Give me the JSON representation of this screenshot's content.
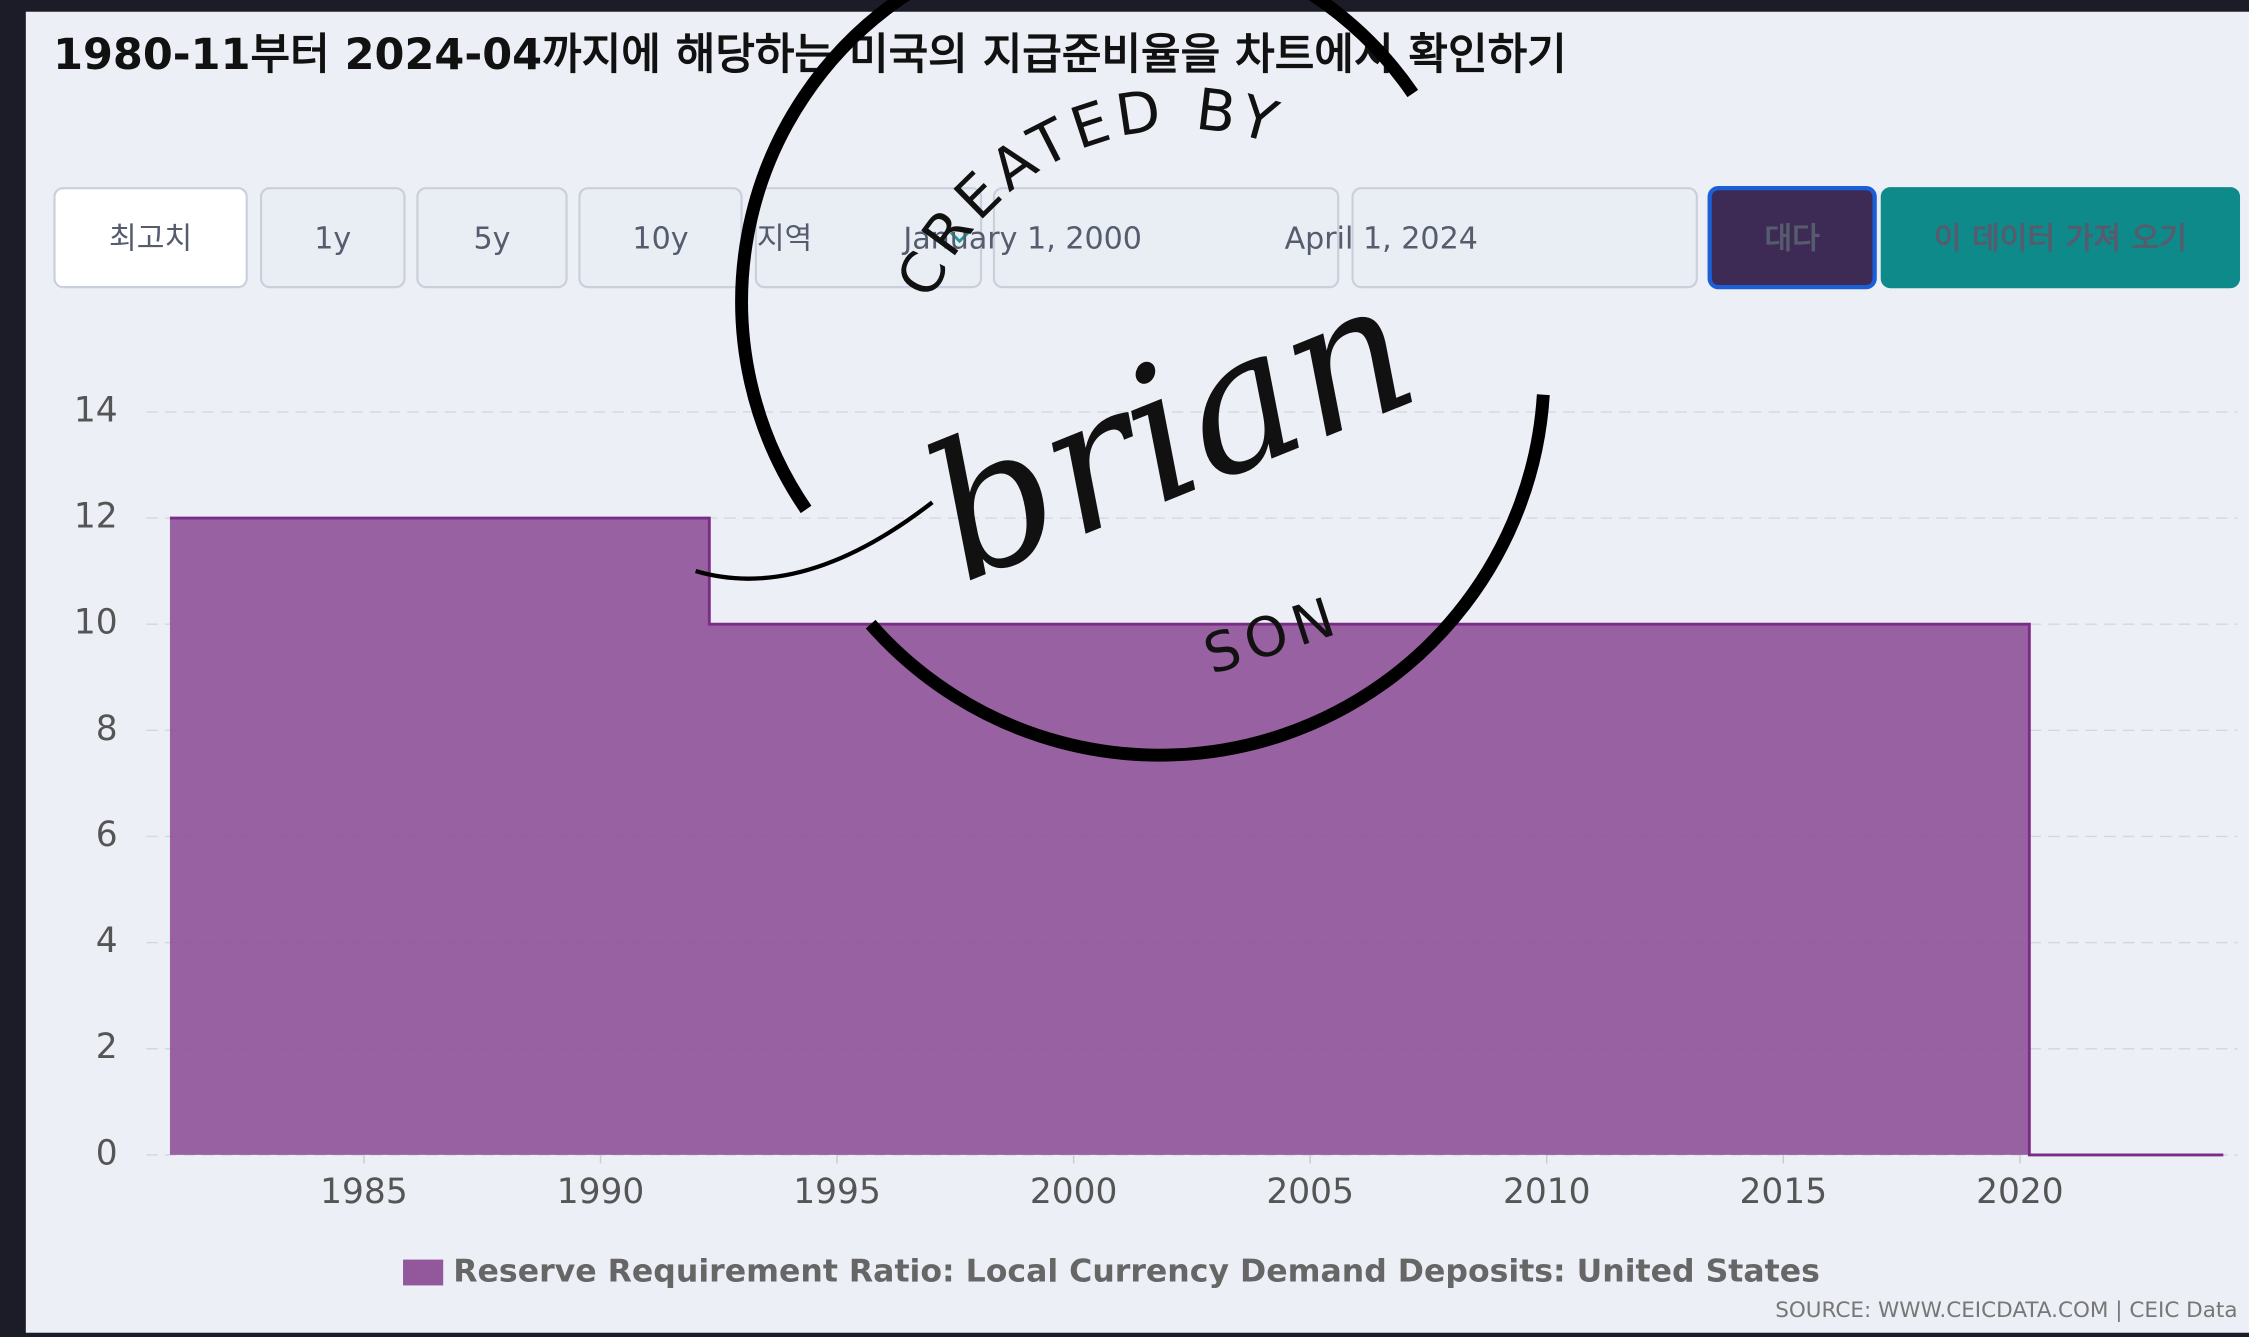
{
  "header": {
    "title": "1980-11부터 2024-04까지에 해당하는 미국의 지급준비율을 차트에서 확인하기"
  },
  "controls": {
    "ranges": [
      "최고치",
      "1y",
      "5y",
      "10y"
    ],
    "region": "지역",
    "start_date": "January 1, 2000",
    "end_date": "April 1, 2024",
    "apply": "대다",
    "fetch": "이 데이터 가져 오기"
  },
  "chart_data": {
    "type": "area",
    "step": "after",
    "x": [
      1980.9,
      1992.3,
      2020.2,
      2024.3
    ],
    "series": [
      {
        "name": "Reserve Requirement Ratio: Local Currency Demand Deposits: United States",
        "color": "#93589c",
        "values": [
          12,
          10,
          0,
          0
        ]
      }
    ],
    "xlim": [
      1980.4,
      2024.6
    ],
    "xticks": [
      1985,
      1990,
      1995,
      2000,
      2005,
      2010,
      2015,
      2020
    ],
    "ylim": [
      0,
      14
    ],
    "yticks": [
      0,
      2,
      4,
      6,
      8,
      10,
      12,
      14
    ],
    "grid": true,
    "legend": "bottom"
  },
  "source": "SOURCE: WWW.CEICDATA.COM | CEIC Data",
  "watermark": {
    "top": "CREATED BY",
    "name": "brian",
    "bottom": "SON"
  }
}
